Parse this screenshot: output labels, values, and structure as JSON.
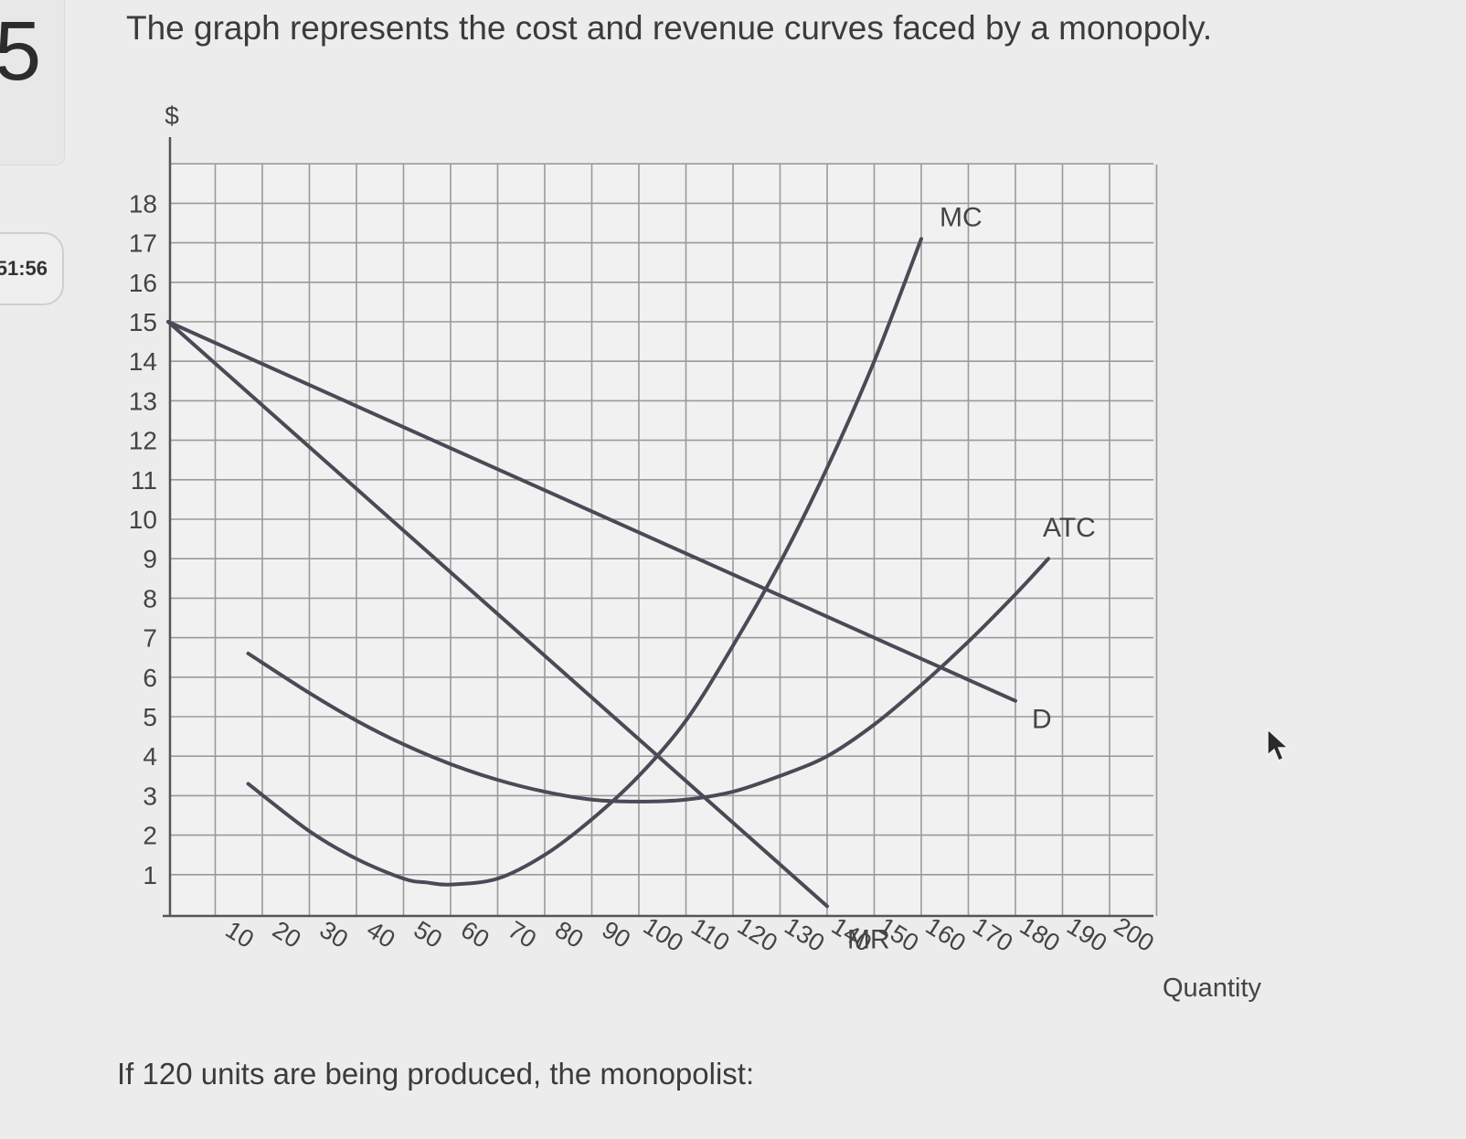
{
  "page": {
    "question_number": "5",
    "timer": "51:56",
    "prompt": "The graph represents the cost and revenue curves faced by a monopoly.",
    "question": "If 120 units are being produced, the monopolist:"
  },
  "chart_data": {
    "type": "line",
    "title": "",
    "xlabel": "Quantity",
    "ylabel": "$",
    "xlim": [
      0,
      210
    ],
    "ylim": [
      0,
      19
    ],
    "x_ticks": [
      10,
      20,
      30,
      40,
      50,
      60,
      70,
      80,
      90,
      100,
      110,
      120,
      130,
      140,
      150,
      160,
      170,
      180,
      190,
      200
    ],
    "y_ticks": [
      1,
      2,
      3,
      4,
      5,
      6,
      7,
      8,
      9,
      10,
      11,
      12,
      13,
      14,
      15,
      16,
      17,
      18
    ],
    "grid": true,
    "series": [
      {
        "name": "MC",
        "color": "#4a4a57",
        "x": [
          17,
          30,
          40,
          50,
          55,
          60,
          70,
          80,
          90,
          100,
          110,
          120,
          130,
          140,
          150,
          160
        ],
        "y": [
          3.3,
          2.1,
          1.4,
          0.9,
          0.8,
          0.75,
          0.9,
          1.5,
          2.4,
          3.5,
          4.9,
          6.8,
          8.9,
          11.3,
          14.0,
          17.1
        ]
      },
      {
        "name": "ATC",
        "color": "#4a4a57",
        "x": [
          17,
          30,
          40,
          50,
          60,
          70,
          80,
          90,
          100,
          110,
          120,
          130,
          140,
          150,
          160,
          170,
          180,
          187
        ],
        "y": [
          6.6,
          5.6,
          4.9,
          4.3,
          3.8,
          3.4,
          3.1,
          2.9,
          2.85,
          2.9,
          3.1,
          3.5,
          4.0,
          4.8,
          5.8,
          6.9,
          8.1,
          9.0
        ]
      },
      {
        "name": "D",
        "color": "#4a4a57",
        "x": [
          0,
          180
        ],
        "y": [
          15,
          5.4
        ]
      },
      {
        "name": "MR",
        "color": "#4a4a57",
        "x": [
          0,
          140
        ],
        "y": [
          15,
          0.2
        ]
      }
    ]
  }
}
